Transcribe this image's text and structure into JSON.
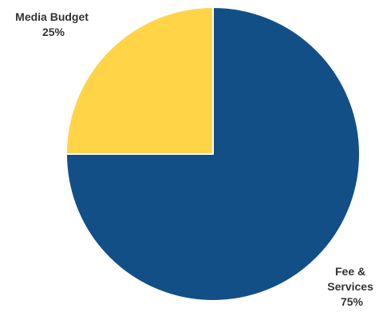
{
  "chart_data": {
    "type": "pie",
    "title": "",
    "slices": [
      {
        "label_lines": [
          "Media Budget"
        ],
        "percent_label": "25%",
        "value": 25,
        "color": "#FFD447"
      },
      {
        "label_lines": [
          "Fee &",
          "Services"
        ],
        "percent_label": "75%",
        "value": 75,
        "color": "#134F87"
      }
    ],
    "start_angle_deg": 270,
    "direction": "counterclockwise",
    "slice_border_color": "#FFFFFF",
    "legend": "none"
  }
}
